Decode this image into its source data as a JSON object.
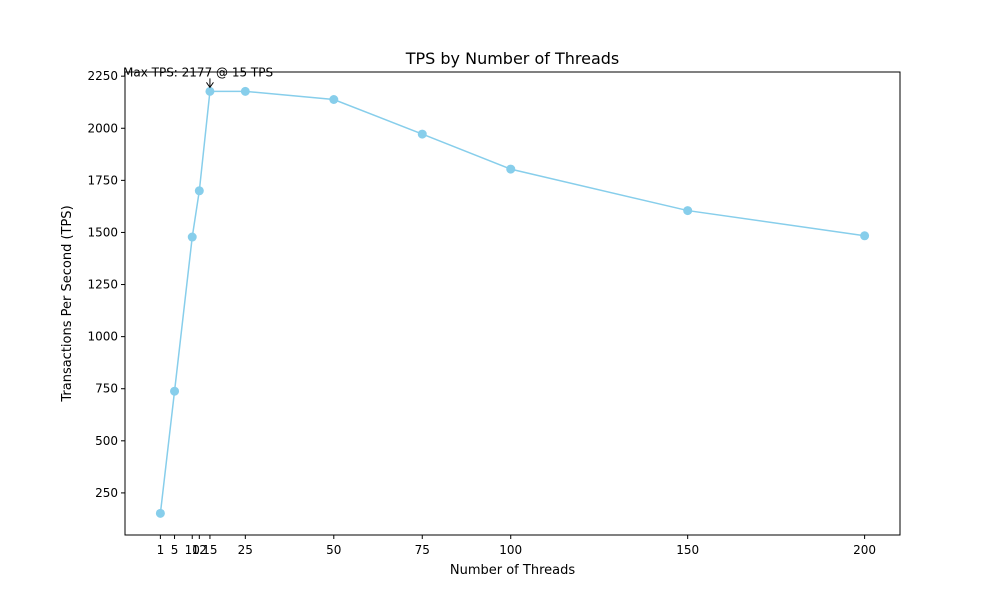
{
  "chart_data": {
    "type": "line",
    "title": "TPS by Number of Threads",
    "xlabel": "Number of Threads",
    "ylabel": "Transactions Per Second (TPS)",
    "x": [
      1,
      5,
      10,
      12,
      15,
      25,
      50,
      75,
      100,
      150,
      200
    ],
    "series": [
      {
        "values": [
          152,
          738,
          1478,
          1700,
          2177,
          2177,
          2138,
          1972,
          1804,
          1605,
          1484
        ],
        "color": "#87ceeb"
      }
    ],
    "xlim": [
      -9,
      210
    ],
    "ylim": [
      48,
      2270
    ],
    "xticks": [
      1,
      5,
      10,
      12,
      15,
      25,
      50,
      75,
      100,
      150,
      200
    ],
    "yticks": [
      250,
      500,
      750,
      1000,
      1250,
      1500,
      1750,
      2000,
      2250
    ],
    "grid": false,
    "annotation": {
      "text": "Max TPS: 2177 @ 15 TPS",
      "x": 15,
      "y": 2177
    }
  }
}
